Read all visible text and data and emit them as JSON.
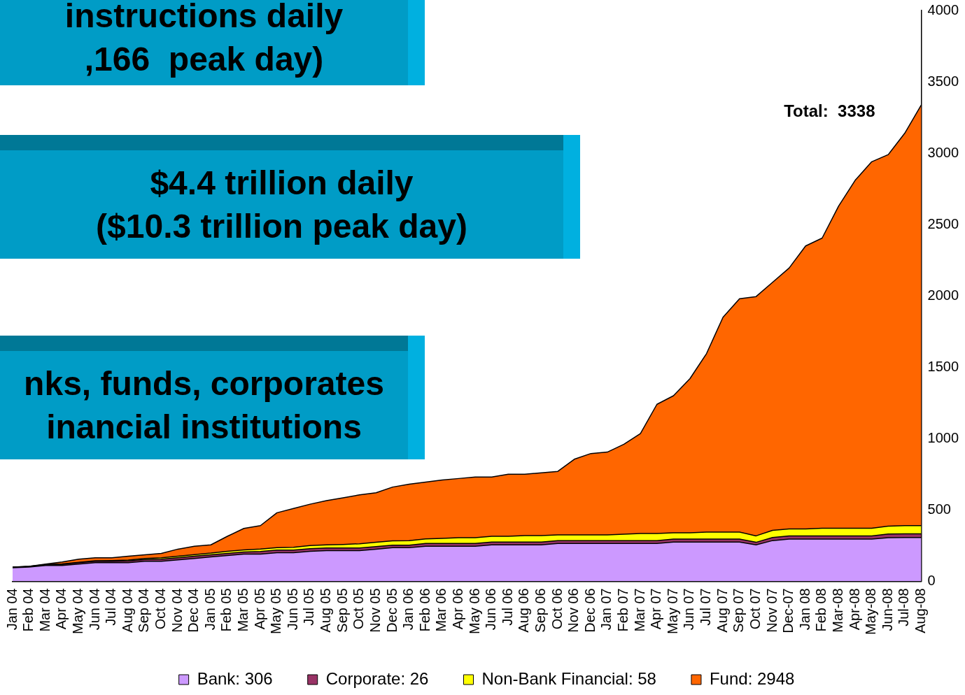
{
  "chart_data": {
    "type": "area",
    "stacked": true,
    "legend": "bottom",
    "categories": [
      "Jan 04",
      "Feb 04",
      "Mar 04",
      "Apr 04",
      "May 04",
      "Jun 04",
      "Jul 04",
      "Aug 04",
      "Sep 04",
      "Oct 04",
      "Nov 04",
      "Dec 04",
      "Jan 05",
      "Feb 05",
      "Mar 05",
      "Apr 05",
      "May 05",
      "Jun 05",
      "Jul 05",
      "Aug 05",
      "Sep 05",
      "Oct 05",
      "Nov 05",
      "Dec 05",
      "Jan 06",
      "Feb 06",
      "Mar 06",
      "Apr 06",
      "May 06",
      "Jun 06",
      "Jul 06",
      "Aug 06",
      "Sep 06",
      "Oct 06",
      "Nov 06",
      "Dec 06",
      "Jan 07",
      "Feb 07",
      "Mar 07",
      "Apr 07",
      "May 07",
      "Jun 07",
      "Jul 07",
      "Aug 07",
      "Sep 07",
      "Oct 07",
      "Nov 07",
      "Dec-07",
      "Jan 08",
      "Feb 08",
      "Mar-08",
      "Apr-08",
      "May-08",
      "Jun-08",
      "Jul-08",
      "Aug-08"
    ],
    "series": [
      {
        "name": "Bank: 306",
        "color": "#cc99ff",
        "values": [
          95,
          100,
          110,
          110,
          120,
          130,
          130,
          130,
          140,
          140,
          150,
          160,
          170,
          180,
          190,
          190,
          200,
          200,
          210,
          215,
          215,
          215,
          225,
          235,
          235,
          245,
          245,
          245,
          245,
          255,
          255,
          255,
          255,
          265,
          265,
          265,
          265,
          265,
          265,
          265,
          275,
          275,
          275,
          275,
          275,
          255,
          285,
          295,
          295,
          295,
          295,
          295,
          295,
          305,
          306,
          306
        ]
      },
      {
        "name": "Corporate: 26",
        "color": "#993366",
        "values": [
          2,
          3,
          5,
          8,
          10,
          10,
          10,
          12,
          12,
          15,
          15,
          15,
          15,
          15,
          15,
          18,
          18,
          18,
          18,
          18,
          18,
          18,
          18,
          18,
          18,
          20,
          20,
          20,
          20,
          20,
          20,
          20,
          20,
          20,
          20,
          20,
          20,
          20,
          20,
          20,
          20,
          20,
          20,
          20,
          20,
          18,
          22,
          22,
          22,
          22,
          22,
          22,
          22,
          26,
          26,
          26
        ]
      },
      {
        "name": "Non-Bank Financial: 58",
        "color": "#ffff00",
        "values": [
          1,
          1,
          2,
          3,
          3,
          4,
          5,
          6,
          8,
          10,
          10,
          12,
          12,
          15,
          15,
          18,
          18,
          20,
          22,
          22,
          25,
          30,
          30,
          30,
          32,
          32,
          35,
          40,
          40,
          40,
          40,
          45,
          45,
          40,
          40,
          40,
          40,
          45,
          50,
          50,
          45,
          45,
          50,
          50,
          50,
          45,
          50,
          50,
          50,
          55,
          55,
          55,
          55,
          55,
          58,
          58
        ]
      },
      {
        "name": "Fund: 2948",
        "color": "#ff6600",
        "values": [
          2,
          1,
          3,
          14,
          22,
          21,
          20,
          27,
          25,
          30,
          50,
          58,
          58,
          105,
          150,
          164,
          244,
          272,
          290,
          310,
          327,
          342,
          347,
          377,
          395,
          398,
          410,
          415,
          425,
          415,
          435,
          430,
          440,
          445,
          530,
          570,
          580,
          630,
          700,
          905,
          960,
          1080,
          1250,
          1505,
          1635,
          1677,
          1738,
          1828,
          1983,
          2033,
          2258,
          2438,
          2568,
          2604,
          2750,
          2948
        ]
      }
    ],
    "ylim": [
      0,
      4000
    ],
    "yticks": [
      0,
      500,
      1000,
      1500,
      2000,
      2500,
      3000,
      3500,
      4000
    ],
    "annotations": [
      {
        "text": "Total:  3338",
        "x": "Aug-08",
        "y": 3338
      },
      "instructions daily\n,166  peak day)",
      "$4.4 trillion daily\n($10.3 trillion peak day)",
      "nks, funds, corporates\ninancial institutions"
    ]
  }
}
